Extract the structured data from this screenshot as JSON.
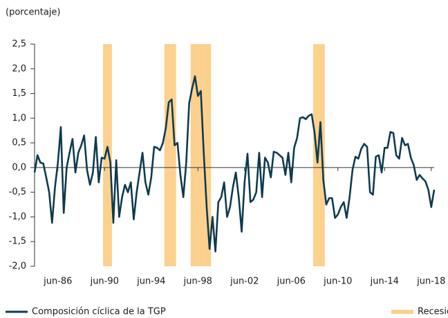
{
  "chart_data": {
    "type": "line",
    "y_label": "(porcentaje)",
    "ylim": [
      -2,
      2.5
    ],
    "yticks": [
      {
        "value": 2.5,
        "label": "2,5"
      },
      {
        "value": 2,
        "label": "2,0"
      },
      {
        "value": 1.5,
        "label": "1,5"
      },
      {
        "value": 1,
        "label": "1,0"
      },
      {
        "value": 0.5,
        "label": "0,5"
      },
      {
        "value": 0,
        "label": "0,0"
      },
      {
        "value": -0.5,
        "label": "-0,5"
      },
      {
        "value": -1,
        "label": "-1,0"
      },
      {
        "value": -1.5,
        "label": "-1,5"
      },
      {
        "value": -2,
        "label": "-2,0"
      }
    ],
    "categories": [
      null,
      null,
      null,
      null,
      null,
      null,
      null,
      null,
      "jun-86",
      null,
      null,
      null,
      null,
      null,
      null,
      null,
      null,
      null,
      null,
      null,
      null,
      null,
      null,
      null,
      "jun-90",
      null,
      null,
      null,
      null,
      null,
      null,
      null,
      null,
      null,
      null,
      null,
      null,
      null,
      null,
      null,
      "jun-94",
      null,
      null,
      null,
      null,
      null,
      null,
      null,
      null,
      null,
      null,
      null,
      null,
      null,
      null,
      null,
      "jun-98",
      null,
      null,
      null,
      null,
      null,
      null,
      null,
      null,
      null,
      null,
      null,
      null,
      null,
      null,
      null,
      "jun-02",
      null,
      null,
      null,
      null,
      null,
      null,
      null,
      null,
      null,
      null,
      null,
      null,
      null,
      null,
      null,
      "jun-06",
      null,
      null,
      null,
      null,
      null,
      null,
      null,
      null,
      null,
      null,
      null,
      null,
      null,
      null,
      null,
      "jun-10",
      null,
      null,
      null,
      null,
      null,
      null,
      null,
      null,
      null,
      null,
      null,
      null,
      null,
      null,
      null,
      "jun-14",
      null,
      null,
      null,
      null,
      null,
      null,
      null,
      null,
      null,
      null,
      null,
      null,
      null,
      null,
      null,
      "jun-18",
      null
    ],
    "series": [
      {
        "name": "Composición cíclica de la TGP",
        "type": "line",
        "color": "#0e3a4f",
        "values": [
          -0.1,
          0.25,
          0.1,
          0.08,
          -0.2,
          -0.5,
          -1.12,
          -0.4,
          0.1,
          0.82,
          -0.92,
          0.0,
          0.3,
          0.58,
          -0.1,
          0.3,
          0.45,
          0.65,
          -0.05,
          -0.35,
          -0.1,
          0.62,
          -0.3,
          0.2,
          0.18,
          0.42,
          0.1,
          -1.12,
          0.15,
          -1.0,
          -0.6,
          -0.35,
          -0.5,
          -0.3,
          -1.05,
          -0.5,
          -0.1,
          0.3,
          -0.3,
          -0.55,
          -0.2,
          0.42,
          0.4,
          0.35,
          0.5,
          0.8,
          1.32,
          1.38,
          0.45,
          0.5,
          -0.15,
          -0.6,
          0.1,
          1.3,
          1.6,
          1.85,
          1.45,
          1.55,
          0.3,
          -0.8,
          -1.65,
          -1.0,
          -1.7,
          -0.7,
          -0.6,
          -0.3,
          -1.0,
          -0.8,
          -0.4,
          -0.1,
          -0.6,
          -1.3,
          -0.3,
          0.28,
          -0.7,
          -0.65,
          -0.5,
          0.3,
          -0.6,
          0.2,
          0.1,
          -0.2,
          0.32,
          0.3,
          0.25,
          0.2,
          -0.15,
          0.3,
          -0.3,
          0.4,
          0.6,
          1.0,
          1.02,
          0.98,
          1.05,
          1.08,
          0.7,
          0.1,
          0.92,
          -0.25,
          -0.75,
          -0.62,
          -0.62,
          -1.02,
          -0.95,
          -0.8,
          -0.7,
          -1.02,
          -0.6,
          -0.05,
          0.22,
          0.18,
          0.38,
          0.48,
          0.42,
          -0.5,
          -0.55,
          0.22,
          0.25,
          -0.1,
          0.4,
          0.4,
          0.72,
          0.7,
          0.25,
          0.18,
          0.6,
          0.45,
          0.48,
          0.2,
          0.05,
          -0.25,
          -0.15,
          -0.22,
          -0.28,
          -0.45,
          -0.8,
          -0.45
        ]
      },
      {
        "name": "Recesión",
        "type": "band",
        "color": "#fcd08c",
        "values": [
          0,
          0,
          0,
          0,
          0,
          0,
          0,
          0,
          0,
          0,
          0,
          0,
          0,
          0,
          0,
          0,
          0,
          0,
          0,
          0,
          0,
          0,
          0,
          0,
          1,
          1,
          1,
          0,
          0,
          0,
          0,
          0,
          0,
          0,
          0,
          0,
          0,
          0,
          0,
          0,
          0,
          0,
          0,
          0,
          0,
          1,
          1,
          1,
          1,
          0,
          0,
          0,
          0,
          0,
          1,
          1,
          1,
          1,
          1,
          1,
          1,
          0,
          0,
          0,
          0,
          0,
          0,
          0,
          0,
          0,
          0,
          0,
          0,
          0,
          0,
          0,
          0,
          0,
          0,
          0,
          0,
          0,
          0,
          0,
          0,
          0,
          0,
          0,
          0,
          0,
          0,
          0,
          0,
          0,
          0,
          0,
          1,
          1,
          1,
          1,
          0,
          0,
          0,
          0,
          0,
          0,
          0,
          0,
          0,
          0,
          0,
          0,
          0,
          0,
          0,
          0,
          0,
          0,
          0,
          0,
          0,
          0,
          0,
          0,
          0,
          0,
          0,
          0,
          0,
          0,
          0,
          0,
          0,
          0,
          0,
          0,
          0,
          0
        ]
      }
    ]
  }
}
